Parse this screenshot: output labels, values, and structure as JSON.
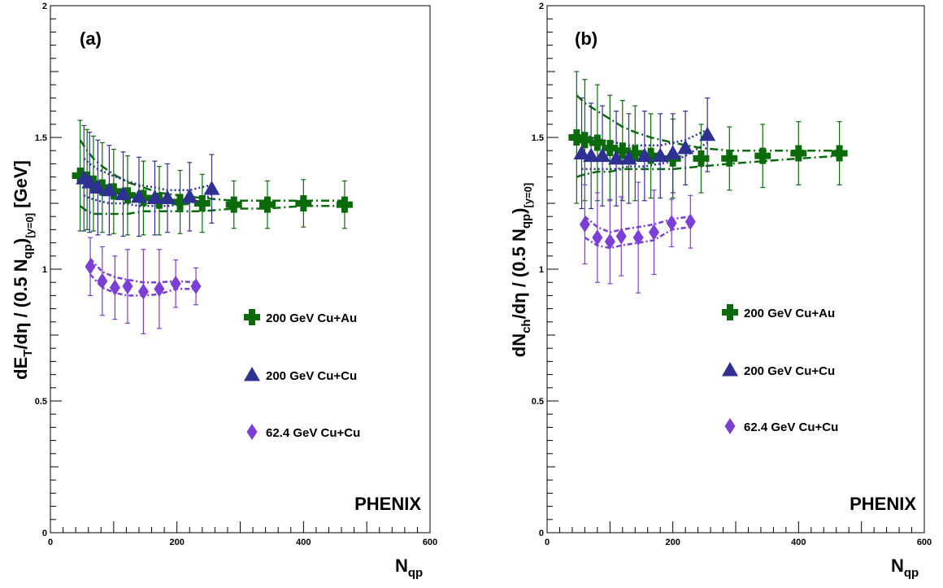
{
  "chart_data": [
    {
      "type": "scatter",
      "panel_label": "(a)",
      "logo": "PHENIX",
      "xlabel": "N_qp",
      "ylabel": "dE_T/dη / (0.5 N_qp)_[y=0] [GeV]",
      "xlim": [
        0,
        600
      ],
      "ylim": [
        0,
        2
      ],
      "xticks": [
        0,
        200,
        400,
        600
      ],
      "yticks": [
        0,
        0.5,
        1,
        1.5,
        2
      ],
      "legend_position": "right",
      "series": [
        {
          "name": "200 GeV Cu+Au",
          "marker": "cross",
          "color": "#0b6b0b",
          "x": [
            47,
            58,
            68,
            82,
            100,
            122,
            147,
            172,
            205,
            240,
            290,
            343,
            400,
            465
          ],
          "y": [
            1.355,
            1.34,
            1.325,
            1.31,
            1.295,
            1.28,
            1.27,
            1.26,
            1.255,
            1.25,
            1.245,
            1.245,
            1.25,
            1.245
          ],
          "err": [
            0.21,
            0.19,
            0.18,
            0.17,
            0.16,
            0.15,
            0.14,
            0.13,
            0.12,
            0.11,
            0.09,
            0.09,
            0.09,
            0.09
          ],
          "band_hi": [
            1.49,
            1.45,
            1.42,
            1.39,
            1.36,
            1.33,
            1.31,
            1.29,
            1.28,
            1.27,
            1.26,
            1.26,
            1.26,
            1.26
          ],
          "band_lo": [
            1.24,
            1.22,
            1.21,
            1.21,
            1.21,
            1.21,
            1.22,
            1.22,
            1.22,
            1.22,
            1.23,
            1.23,
            1.24,
            1.24
          ]
        },
        {
          "name": "200 GeV Cu+Cu",
          "marker": "triangle",
          "color": "#2e3192",
          "x": [
            53,
            62,
            75,
            93,
            115,
            140,
            165,
            185,
            220,
            255
          ],
          "y": [
            1.345,
            1.33,
            1.31,
            1.3,
            1.285,
            1.275,
            1.27,
            1.27,
            1.275,
            1.305
          ],
          "err": [
            0.2,
            0.19,
            0.18,
            0.17,
            0.16,
            0.15,
            0.14,
            0.13,
            0.13,
            0.13
          ],
          "band_hi": [
            1.42,
            1.4,
            1.38,
            1.36,
            1.34,
            1.32,
            1.31,
            1.3,
            1.3,
            1.32
          ],
          "band_lo": [
            1.28,
            1.27,
            1.26,
            1.25,
            1.25,
            1.24,
            1.24,
            1.24,
            1.25,
            1.28
          ]
        },
        {
          "name": "62.4 GeV Cu+Cu",
          "marker": "diamond",
          "color": "#7b3fd6",
          "x": [
            63,
            82,
            102,
            122,
            147,
            172,
            198,
            230
          ],
          "y": [
            1.01,
            0.955,
            0.93,
            0.935,
            0.915,
            0.925,
            0.945,
            0.935
          ],
          "err": [
            0.11,
            0.13,
            0.12,
            0.14,
            0.16,
            0.15,
            0.09,
            0.07
          ],
          "band_hi": [
            1.04,
            0.99,
            0.97,
            0.96,
            0.95,
            0.95,
            0.955,
            0.95
          ],
          "band_lo": [
            0.98,
            0.93,
            0.91,
            0.9,
            0.9,
            0.905,
            0.925,
            0.925
          ]
        }
      ]
    },
    {
      "type": "scatter",
      "panel_label": "(b)",
      "logo": "PHENIX",
      "xlabel": "N_qp",
      "ylabel": "dN_ch/dη / (0.5 N_qp)_[y=0]",
      "xlim": [
        0,
        600
      ],
      "ylim": [
        0,
        2
      ],
      "xticks": [
        0,
        200,
        400,
        600
      ],
      "yticks": [
        0,
        0.5,
        1,
        1.5,
        2
      ],
      "legend_position": "right",
      "series": [
        {
          "name": "200 GeV Cu+Au",
          "marker": "cross",
          "color": "#0b6b0b",
          "x": [
            47,
            60,
            80,
            100,
            120,
            140,
            165,
            200,
            245,
            290,
            343,
            400,
            465
          ],
          "y": [
            1.5,
            1.49,
            1.48,
            1.46,
            1.45,
            1.44,
            1.43,
            1.42,
            1.42,
            1.42,
            1.43,
            1.44,
            1.44
          ],
          "err": [
            0.25,
            0.23,
            0.22,
            0.2,
            0.19,
            0.18,
            0.16,
            0.15,
            0.13,
            0.12,
            0.12,
            0.12,
            0.12
          ],
          "band_hi": [
            1.66,
            1.63,
            1.6,
            1.57,
            1.54,
            1.52,
            1.5,
            1.48,
            1.46,
            1.45,
            1.45,
            1.45,
            1.45
          ],
          "band_lo": [
            1.35,
            1.36,
            1.37,
            1.37,
            1.38,
            1.38,
            1.38,
            1.38,
            1.39,
            1.4,
            1.41,
            1.42,
            1.43
          ]
        },
        {
          "name": "200 GeV Cu+Cu",
          "marker": "triangle",
          "color": "#2e3192",
          "x": [
            55,
            70,
            88,
            110,
            130,
            155,
            180,
            200,
            220,
            255
          ],
          "y": [
            1.44,
            1.43,
            1.43,
            1.42,
            1.42,
            1.43,
            1.43,
            1.44,
            1.46,
            1.51
          ],
          "err": [
            0.21,
            0.2,
            0.19,
            0.18,
            0.17,
            0.17,
            0.16,
            0.15,
            0.14,
            0.14
          ],
          "band_hi": [
            1.52,
            1.5,
            1.49,
            1.48,
            1.47,
            1.47,
            1.47,
            1.48,
            1.49,
            1.53
          ],
          "band_lo": [
            1.38,
            1.38,
            1.38,
            1.38,
            1.39,
            1.39,
            1.4,
            1.41,
            1.43,
            1.48
          ]
        },
        {
          "name": "62.4 GeV Cu+Cu",
          "marker": "diamond",
          "color": "#7b3fd6",
          "x": [
            60,
            80,
            100,
            118,
            145,
            170,
            198,
            228
          ],
          "y": [
            1.17,
            1.12,
            1.105,
            1.125,
            1.12,
            1.14,
            1.175,
            1.18
          ],
          "err": [
            0.15,
            0.17,
            0.16,
            0.15,
            0.21,
            0.16,
            0.09,
            0.1
          ],
          "band_hi": [
            1.2,
            1.16,
            1.14,
            1.15,
            1.16,
            1.17,
            1.19,
            1.2
          ],
          "band_lo": [
            1.12,
            1.09,
            1.08,
            1.09,
            1.1,
            1.11,
            1.15,
            1.16
          ]
        }
      ]
    }
  ]
}
